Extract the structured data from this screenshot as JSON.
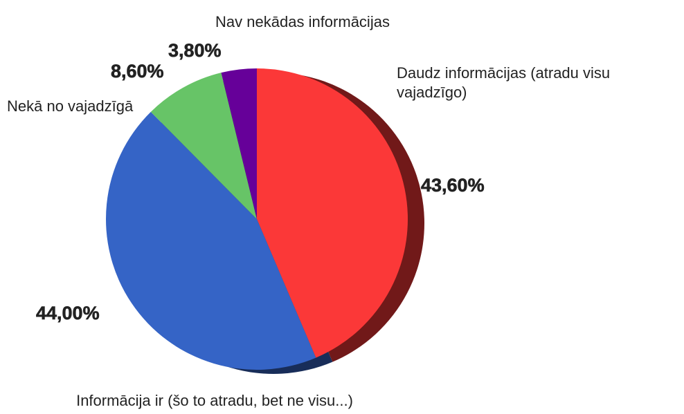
{
  "chart_data": {
    "type": "pie",
    "categories": [
      "Daudz informācijas (atradu visu vajadzīgo)",
      "Informācija ir (šo to atradu, bet ne visu...)",
      "Nekā no vajadzīgā",
      "Nav nekādas informācijas"
    ],
    "values": [
      43.6,
      44.0,
      8.6,
      3.8
    ],
    "value_labels": [
      "43,60%",
      "44,00%",
      "8,60%",
      "3,80%"
    ],
    "colors": [
      "#fb3838",
      "#3564c6",
      "#67c467",
      "#660099"
    ]
  }
}
